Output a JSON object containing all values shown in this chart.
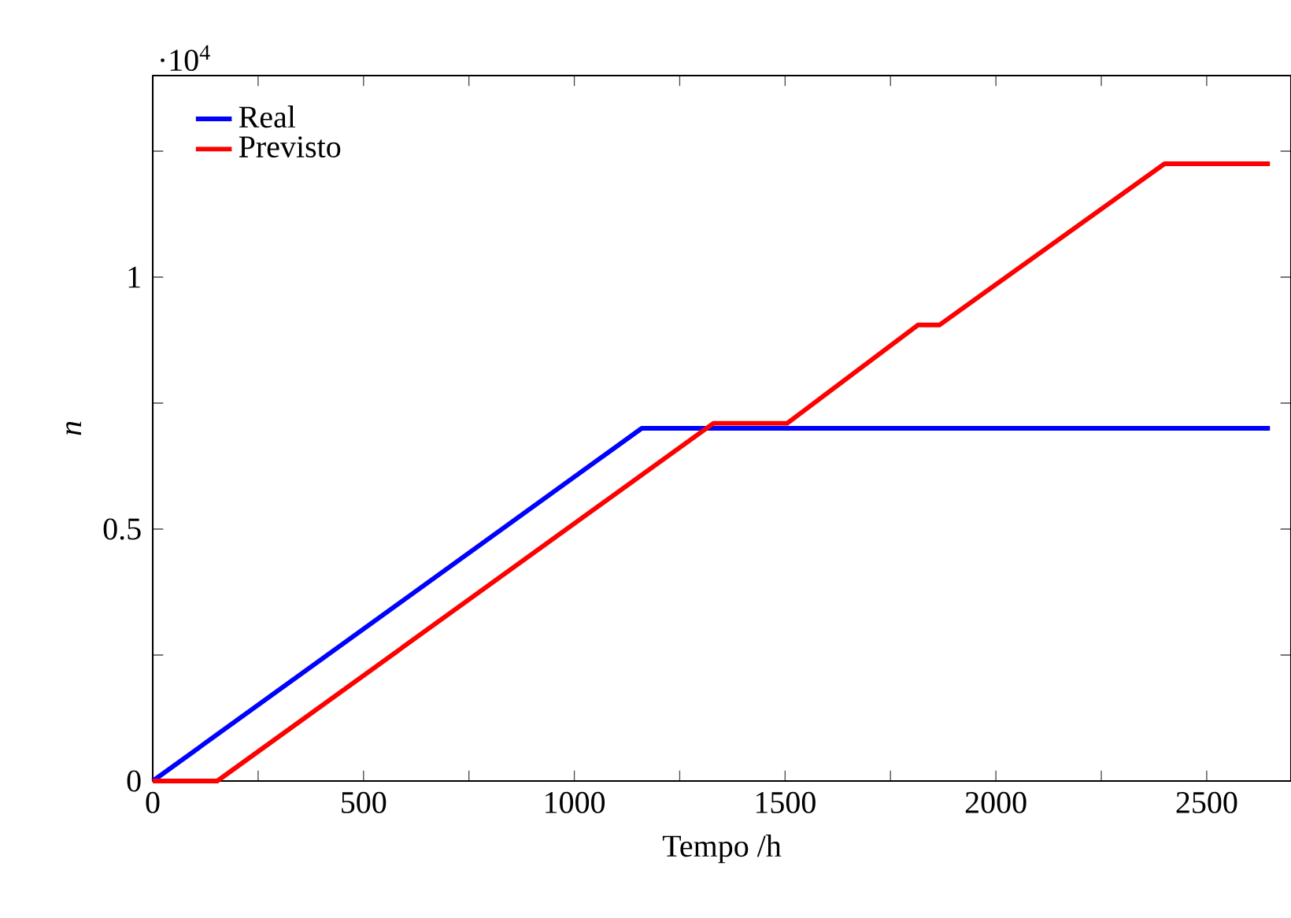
{
  "chart_data": {
    "type": "line",
    "xlabel": "Tempo /h",
    "ylabel": "n",
    "annotations": [
      "·10$^{4}$"
    ],
    "xlim": [
      0,
      2700
    ],
    "ylim": [
      0,
      1.4
    ],
    "xticks": [
      0,
      {
        "value": 250,
        "label": null
      },
      500,
      {
        "value": 750,
        "label": null
      },
      1000,
      {
        "value": 1250,
        "label": null
      },
      1500,
      {
        "value": 1750,
        "label": null
      },
      2000,
      {
        "value": 2250,
        "label": null
      },
      2500
    ],
    "yticks": [
      0,
      {
        "value": 0.25,
        "label": null
      },
      0.5,
      {
        "value": 0.75,
        "label": null
      },
      1,
      {
        "value": 1.25,
        "label": null
      }
    ],
    "legend": "top left",
    "marker": "none",
    "line_style": "solid",
    "series": [
      {
        "name": "Real",
        "color": "#0000ff",
        "x": [
          0,
          1160,
          2650
        ],
        "values": [
          0,
          0.7,
          0.7
        ]
      },
      {
        "name": "Previsto",
        "color": "#ff0000",
        "x": [
          0,
          153,
          1330,
          1505,
          1815,
          1866,
          2400,
          2650
        ],
        "values": [
          0,
          0,
          0.71,
          0.71,
          0.905,
          0.905,
          1.225,
          1.225
        ]
      }
    ]
  }
}
